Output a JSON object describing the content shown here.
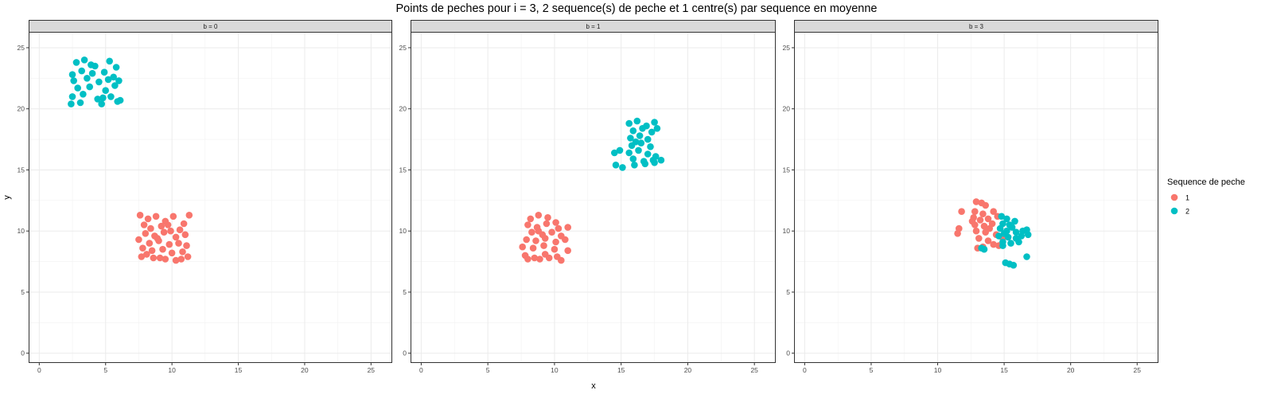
{
  "chart_data": {
    "type": "scatter",
    "title": "Points de peches pour i = 3, 2 sequence(s) de peche et 1 centre(s) par sequence en moyenne",
    "xlabel": "x",
    "ylabel": "y",
    "xlim": [
      0,
      25
    ],
    "ylim": [
      0,
      25
    ],
    "x_ticks": [
      "0",
      "5",
      "10",
      "15",
      "20",
      "25"
    ],
    "y_ticks": [
      "0",
      "5",
      "10",
      "15",
      "20",
      "25"
    ],
    "grid": true,
    "legend": {
      "title": "Sequence de peche",
      "position": "right",
      "entries": [
        {
          "label": "1",
          "color": "#F8766D"
        },
        {
          "label": "2",
          "color": "#00BFC4"
        }
      ]
    },
    "facets": [
      {
        "label": "b = 0",
        "series": [
          {
            "name": "1",
            "color": "#F8766D",
            "points": [
              [
                7.6,
                11.3
              ],
              [
                8.2,
                11.0
              ],
              [
                8.8,
                11.2
              ],
              [
                9.5,
                10.8
              ],
              [
                10.1,
                11.2
              ],
              [
                10.9,
                10.6
              ],
              [
                11.3,
                11.3
              ],
              [
                7.9,
                10.5
              ],
              [
                8.4,
                10.2
              ],
              [
                9.2,
                10.4
              ],
              [
                9.9,
                10.0
              ],
              [
                10.6,
                10.1
              ],
              [
                11.0,
                9.7
              ],
              [
                8.0,
                9.8
              ],
              [
                8.7,
                9.6
              ],
              [
                9.4,
                9.9
              ],
              [
                10.3,
                9.5
              ],
              [
                7.5,
                9.3
              ],
              [
                8.3,
                9.0
              ],
              [
                9.0,
                9.2
              ],
              [
                9.8,
                8.9
              ],
              [
                10.5,
                9.0
              ],
              [
                11.1,
                8.8
              ],
              [
                7.8,
                8.6
              ],
              [
                8.5,
                8.4
              ],
              [
                9.3,
                8.5
              ],
              [
                10.0,
                8.2
              ],
              [
                10.8,
                8.3
              ],
              [
                7.7,
                7.9
              ],
              [
                8.6,
                7.8
              ],
              [
                9.5,
                7.7
              ],
              [
                10.3,
                7.6
              ],
              [
                11.2,
                7.9
              ],
              [
                8.1,
                8.1
              ],
              [
                9.1,
                7.8
              ],
              [
                10.7,
                7.7
              ],
              [
                9.7,
                10.5
              ],
              [
                8.9,
                9.4
              ]
            ]
          },
          {
            "name": "2",
            "color": "#00BFC4",
            "points": [
              [
                2.8,
                23.8
              ],
              [
                3.4,
                24.0
              ],
              [
                4.2,
                23.5
              ],
              [
                5.3,
                23.9
              ],
              [
                5.8,
                23.4
              ],
              [
                2.5,
                22.8
              ],
              [
                3.2,
                23.1
              ],
              [
                4.0,
                22.9
              ],
              [
                4.9,
                23.0
              ],
              [
                5.6,
                22.6
              ],
              [
                6.0,
                22.3
              ],
              [
                2.6,
                22.3
              ],
              [
                3.6,
                22.5
              ],
              [
                4.5,
                22.2
              ],
              [
                5.2,
                22.4
              ],
              [
                2.9,
                21.7
              ],
              [
                3.8,
                21.8
              ],
              [
                5.0,
                21.5
              ],
              [
                5.7,
                21.9
              ],
              [
                2.5,
                21.0
              ],
              [
                3.3,
                21.2
              ],
              [
                4.4,
                20.8
              ],
              [
                5.4,
                21.0
              ],
              [
                6.1,
                20.7
              ],
              [
                2.4,
                20.4
              ],
              [
                3.1,
                20.5
              ],
              [
                4.7,
                20.4
              ],
              [
                5.9,
                20.6
              ],
              [
                3.9,
                23.6
              ],
              [
                4.8,
                20.9
              ]
            ]
          }
        ]
      },
      {
        "label": "b = 1",
        "series": [
          {
            "name": "1",
            "color": "#F8766D",
            "points": [
              [
                8.2,
                11.0
              ],
              [
                8.8,
                11.3
              ],
              [
                9.5,
                11.1
              ],
              [
                10.1,
                10.7
              ],
              [
                8.0,
                10.5
              ],
              [
                8.7,
                10.3
              ],
              [
                9.4,
                10.6
              ],
              [
                10.3,
                10.2
              ],
              [
                11.0,
                10.3
              ],
              [
                8.3,
                9.9
              ],
              [
                9.1,
                9.7
              ],
              [
                9.8,
                9.9
              ],
              [
                10.5,
                9.6
              ],
              [
                7.9,
                9.3
              ],
              [
                8.6,
                9.2
              ],
              [
                9.3,
                9.4
              ],
              [
                10.1,
                9.1
              ],
              [
                10.8,
                9.3
              ],
              [
                7.6,
                8.7
              ],
              [
                8.4,
                8.6
              ],
              [
                9.2,
                8.8
              ],
              [
                10.0,
                8.5
              ],
              [
                7.8,
                8.0
              ],
              [
                8.5,
                7.8
              ],
              [
                9.3,
                8.1
              ],
              [
                10.2,
                7.9
              ],
              [
                11.0,
                8.4
              ],
              [
                8.0,
                7.7
              ],
              [
                8.9,
                7.7
              ],
              [
                9.6,
                7.8
              ],
              [
                10.5,
                7.6
              ],
              [
                8.8,
                10.0
              ]
            ]
          },
          {
            "name": "2",
            "color": "#00BFC4",
            "points": [
              [
                15.6,
                18.8
              ],
              [
                16.2,
                19.0
              ],
              [
                16.9,
                18.6
              ],
              [
                17.5,
                18.9
              ],
              [
                15.9,
                18.2
              ],
              [
                16.6,
                18.4
              ],
              [
                17.3,
                18.1
              ],
              [
                17.7,
                18.4
              ],
              [
                15.7,
                17.6
              ],
              [
                16.4,
                17.8
              ],
              [
                17.0,
                17.5
              ],
              [
                15.8,
                17.0
              ],
              [
                16.5,
                17.2
              ],
              [
                17.2,
                16.9
              ],
              [
                14.9,
                16.6
              ],
              [
                15.6,
                16.4
              ],
              [
                16.3,
                16.6
              ],
              [
                17.0,
                16.3
              ],
              [
                17.6,
                16.1
              ],
              [
                14.5,
                16.4
              ],
              [
                15.9,
                15.9
              ],
              [
                16.7,
                15.7
              ],
              [
                17.4,
                15.8
              ],
              [
                18.0,
                15.8
              ],
              [
                14.6,
                15.4
              ],
              [
                15.1,
                15.2
              ],
              [
                16.0,
                15.4
              ],
              [
                16.8,
                15.5
              ],
              [
                17.5,
                15.6
              ],
              [
                16.1,
                17.3
              ]
            ]
          }
        ]
      },
      {
        "label": "b = 3",
        "series": [
          {
            "name": "1",
            "color": "#F8766D",
            "points": [
              [
                12.9,
                12.4
              ],
              [
                13.3,
                12.3
              ],
              [
                13.6,
                12.1
              ],
              [
                12.8,
                11.6
              ],
              [
                13.4,
                11.4
              ],
              [
                14.2,
                11.6
              ],
              [
                11.8,
                11.6
              ],
              [
                12.7,
                11.1
              ],
              [
                13.2,
                10.9
              ],
              [
                13.8,
                11.0
              ],
              [
                14.5,
                11.2
              ],
              [
                12.8,
                10.5
              ],
              [
                13.5,
                10.4
              ],
              [
                14.1,
                10.6
              ],
              [
                11.6,
                10.2
              ],
              [
                11.5,
                9.8
              ],
              [
                12.9,
                10.0
              ],
              [
                13.6,
                9.9
              ],
              [
                14.4,
                9.7
              ],
              [
                13.1,
                9.4
              ],
              [
                13.8,
                9.2
              ],
              [
                14.2,
                8.9
              ],
              [
                13.0,
                8.6
              ],
              [
                13.4,
                8.7
              ],
              [
                14.6,
                8.8
              ],
              [
                14.9,
                9.4
              ],
              [
                12.6,
                10.8
              ],
              [
                13.9,
                10.2
              ]
            ]
          },
          {
            "name": "2",
            "color": "#00BFC4",
            "points": [
              [
                14.8,
                11.2
              ],
              [
                15.2,
                11.0
              ],
              [
                14.9,
                10.6
              ],
              [
                15.4,
                10.5
              ],
              [
                15.8,
                10.8
              ],
              [
                14.7,
                10.2
              ],
              [
                15.2,
                10.0
              ],
              [
                15.9,
                9.9
              ],
              [
                16.4,
                10.0
              ],
              [
                16.7,
                10.1
              ],
              [
                16.8,
                9.7
              ],
              [
                14.6,
                9.6
              ],
              [
                15.3,
                9.5
              ],
              [
                15.9,
                9.4
              ],
              [
                16.3,
                9.6
              ],
              [
                14.9,
                9.1
              ],
              [
                15.5,
                9.0
              ],
              [
                16.1,
                9.1
              ],
              [
                14.9,
                8.8
              ],
              [
                13.3,
                8.6
              ],
              [
                13.5,
                8.5
              ],
              [
                15.1,
                7.4
              ],
              [
                15.4,
                7.3
              ],
              [
                15.7,
                7.2
              ],
              [
                16.7,
                7.9
              ],
              [
                15.6,
                10.3
              ],
              [
                15.0,
                9.8
              ]
            ]
          }
        ]
      }
    ]
  }
}
